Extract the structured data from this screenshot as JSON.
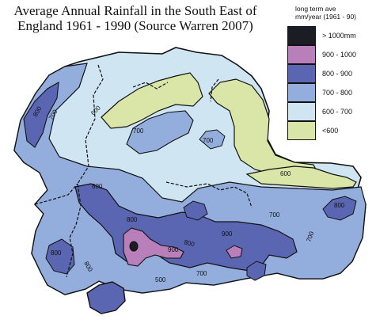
{
  "title_line1": "Average Annual Rainfall in the South East of",
  "title_line2": "England 1961 - 1990 (Source Warren 2007)",
  "legend": {
    "header_line1": "long term ave",
    "header_line2": "mm/year (1961 - 90)",
    "items": [
      {
        "label": "> 1000mm",
        "color": "#1c1c24"
      },
      {
        "label": "900 - 1000",
        "color": "#b87fba"
      },
      {
        "label": "800 - 900",
        "color": "#5b66b2"
      },
      {
        "label": "700 - 800",
        "color": "#93aedd"
      },
      {
        "label": "600 - 700",
        "color": "#cfe6f2"
      },
      {
        "label": "<600",
        "color": "#d9e6a8"
      }
    ]
  },
  "isohyet_labels": [
    "600",
    "700",
    "800",
    "900",
    "700",
    "700",
    "600",
    "800",
    "800",
    "700",
    "700",
    "800",
    "800",
    "800",
    "900",
    "700",
    "800",
    "500"
  ]
}
